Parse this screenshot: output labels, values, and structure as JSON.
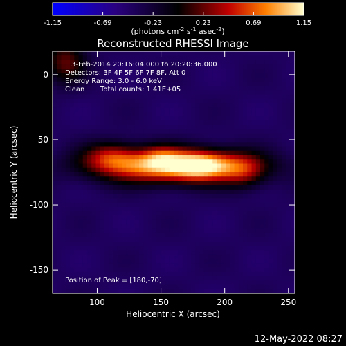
{
  "chart_data": {
    "type": "heatmap",
    "title": "Reconstructed RHESSI Image",
    "xlabel": "Heliocentric X (arcsec)",
    "ylabel": "Heliocentric Y (arcsec)",
    "xlim": [
      65,
      255
    ],
    "ylim": [
      -168,
      18
    ],
    "xticks": [
      100,
      150,
      200,
      250
    ],
    "yticks": [
      0,
      -50,
      -100,
      -150
    ],
    "colorbar": {
      "range": [
        -1.15,
        1.15
      ],
      "ticks": [
        "-1.15",
        "-0.69",
        "-0.23",
        "0.23",
        "0.69",
        "1.15"
      ],
      "unit_prefix": "(photons cm",
      "unit_sup1": "-2",
      "unit_mid1": " s",
      "unit_sup2": "-1",
      "unit_mid2": " asec",
      "unit_sup3": "-2",
      "unit_suffix": ")"
    },
    "annotations": {
      "time": "3-Feb-2014 20:16:04.000 to 20:20:36.000",
      "detectors": "Detectors: 3F 4F 5F 6F 7F 8F, Att 0",
      "energy": "Energy Range: 3.0 - 6.0 keV",
      "method": "Clean",
      "counts": "Total counts: 1.41E+05",
      "peak": "Position of Peak = [180,-70]"
    },
    "peak_position": [
      180,
      -70
    ],
    "sources": [
      {
        "x": 160,
        "y": -70,
        "sx": 42,
        "sy": 9,
        "amp": 1.0
      },
      {
        "x": 182,
        "y": -70,
        "sx": 14,
        "sy": 7,
        "amp": 0.35
      },
      {
        "x": 150,
        "y": -62,
        "sx": 10,
        "sy": 6,
        "amp": 0.2
      },
      {
        "x": 110,
        "y": -62,
        "sx": 14,
        "sy": 8,
        "amp": 0.35
      },
      {
        "x": 215,
        "y": -75,
        "sx": 12,
        "sy": 9,
        "amp": 0.3
      },
      {
        "x": 75,
        "y": 10,
        "sx": 12,
        "sy": 12,
        "amp": 0.4
      }
    ],
    "footer_date": "12-May-2022 08:27"
  }
}
